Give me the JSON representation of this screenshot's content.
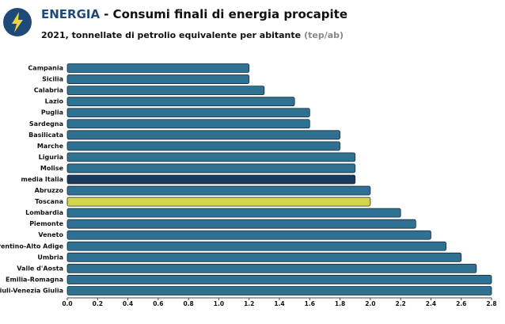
{
  "chart_data": {
    "type": "bar",
    "orientation": "horizontal",
    "title": {
      "highlight": "ENERGIA",
      "text": "- Consumi finali di energia procapite"
    },
    "subtitle": {
      "text": "2021, tonnellate di petrolio equivalente per abitante",
      "unit": "(tep/ab)"
    },
    "categories": [
      "Campania",
      "Sicilia",
      "Calabria",
      "Lazio",
      "Puglia",
      "Sardegna",
      "Basilicata",
      "Marche",
      "Liguria",
      "Molise",
      "media Italia",
      "Abruzzo",
      "Toscana",
      "Lombardia",
      "Piemonte",
      "Veneto",
      "Trentino-Alto Adige",
      "Umbria",
      "Valle d'Aosta",
      "Emilia-Romagna",
      "Friuli-Venezia Giulia"
    ],
    "values": [
      1.2,
      1.2,
      1.3,
      1.5,
      1.6,
      1.6,
      1.8,
      1.8,
      1.9,
      1.9,
      1.9,
      2.0,
      2.0,
      2.2,
      2.3,
      2.4,
      2.5,
      2.6,
      2.7,
      2.8,
      2.8
    ],
    "colors": [
      "#2f7193",
      "#2f7193",
      "#2f7193",
      "#2f7193",
      "#2f7193",
      "#2f7193",
      "#2f7193",
      "#2f7193",
      "#2f7193",
      "#2f7193",
      "#173a5e",
      "#2f7193",
      "#d3d64a",
      "#2f7193",
      "#2f7193",
      "#2f7193",
      "#2f7193",
      "#2f7193",
      "#2f7193",
      "#2f7193",
      "#2f7193"
    ],
    "xlim": [
      0,
      2.8
    ],
    "xticks": [
      {
        "value": 0,
        "label": "0.0"
      },
      0.2,
      0.4,
      0.6,
      0.8,
      {
        "value": 1,
        "label": "1.0"
      },
      1.2,
      1.4,
      1.6,
      1.8,
      {
        "value": 2,
        "label": "2.0"
      },
      2.2,
      2.4,
      2.6,
      2.8
    ],
    "grid": false
  }
}
